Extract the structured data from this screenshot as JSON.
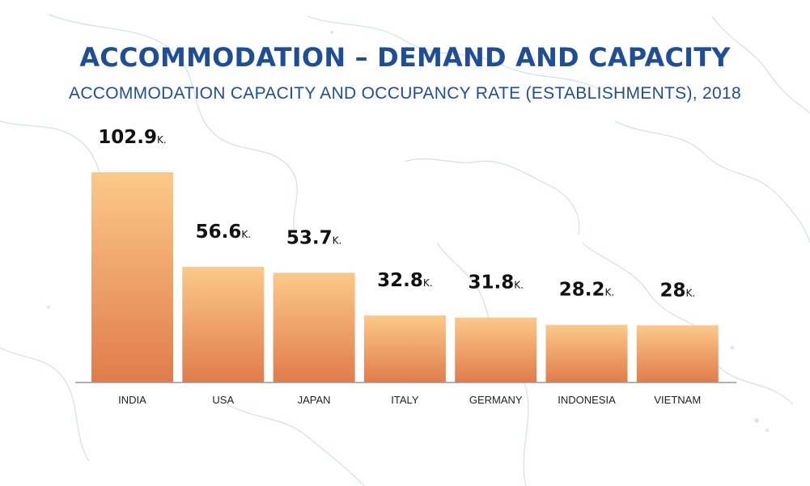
{
  "colors": {
    "title": "#1f4e96",
    "bar_top": "#fcc98a",
    "bar_bottom": "#e07c4c",
    "axis": "#999999",
    "map_line": "#c9dde8",
    "value_text": "#111111",
    "label_text": "#222222"
  },
  "chart_data": {
    "type": "bar",
    "title": "ACCOMMODATION – DEMAND AND CAPACITY",
    "subtitle": "ACCOMMODATION CAPACITY AND OCCUPANCY RATE (ESTABLISHMENTS), 2018",
    "categories": [
      "INDIA",
      "USA",
      "JAPAN",
      "ITALY",
      "GERMANY",
      "INDONESIA",
      "VIETNAM"
    ],
    "values": [
      102.9,
      56.6,
      53.7,
      32.8,
      31.8,
      28.2,
      28
    ],
    "value_labels": [
      "102.9",
      "56.6",
      "53.7",
      "32.8",
      "31.8",
      "28.2",
      "28"
    ],
    "unit": "K.",
    "xlabel": "",
    "ylabel": "",
    "ylim": [
      0,
      102.9
    ],
    "grid": false,
    "legend": "none"
  }
}
